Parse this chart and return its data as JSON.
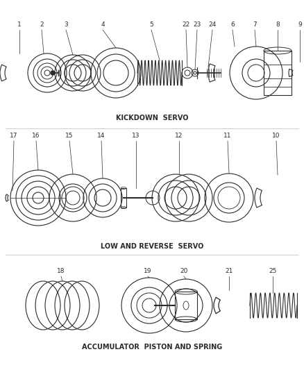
{
  "bg_color": "#ffffff",
  "lc": "#2a2a2a",
  "lw": 0.8,
  "fig_w": 4.38,
  "fig_h": 5.33,
  "dpi": 100,
  "s1_title": "KICKDOWN  SERVO",
  "s2_title": "LOW AND REVERSE  SERVO",
  "s3_title": "ACCUMULATOR  PISTON AND SPRING",
  "title_fs": 7.0
}
